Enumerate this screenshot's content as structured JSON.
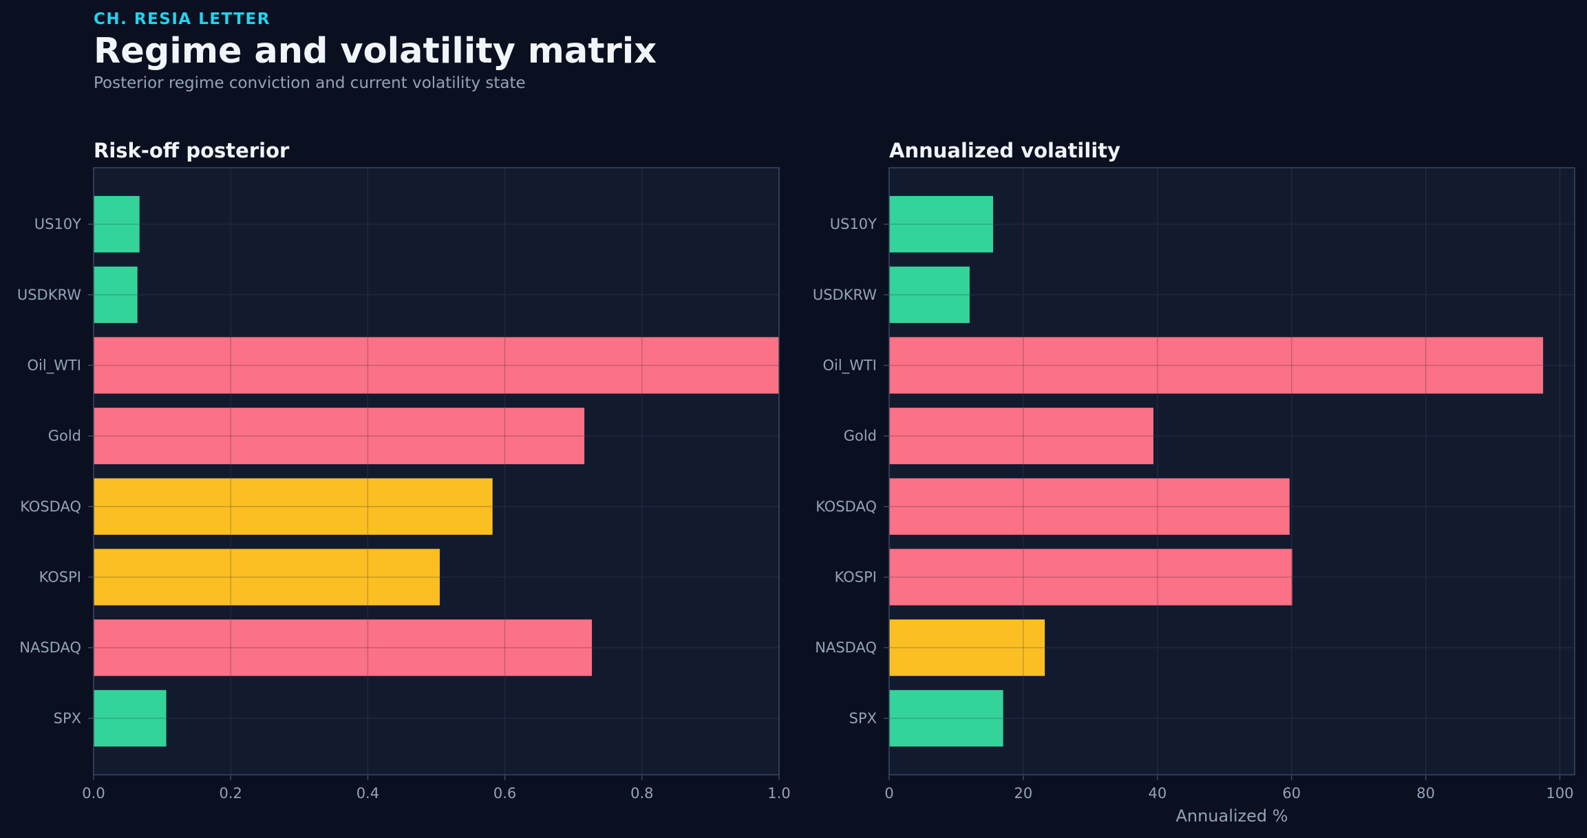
{
  "header": {
    "eyebrow": "CH. RESIA LETTER",
    "title": "Regime and volatility matrix",
    "subtitle": "Posterior regime conviction and current volatility state"
  },
  "colors": {
    "background": "#0a1020",
    "panel": "#121a2e",
    "green": "#34d399",
    "red": "#fb7185",
    "amber": "#fbbf24",
    "grid": "#26304a",
    "frame": "#3b4766"
  },
  "chart_data": [
    {
      "type": "bar",
      "orientation": "horizontal",
      "title": "Risk-off posterior",
      "xlabel": "",
      "ylabel": "",
      "categories": [
        "US10Y",
        "USDKRW",
        "Oil_WTI",
        "Gold",
        "KOSDAQ",
        "KOSPI",
        "NASDAQ",
        "SPX"
      ],
      "values": [
        0.067,
        0.064,
        1.0,
        0.716,
        0.582,
        0.505,
        0.727,
        0.106
      ],
      "bar_colors": [
        "green",
        "green",
        "red",
        "red",
        "amber",
        "amber",
        "red",
        "green"
      ],
      "xlim": [
        0,
        1.0
      ],
      "xticks": [
        0.0,
        0.2,
        0.4,
        0.6,
        0.8,
        1.0
      ],
      "xtick_labels": [
        "0.0",
        "0.2",
        "0.4",
        "0.6",
        "0.8",
        "1.0"
      ],
      "grid": true
    },
    {
      "type": "bar",
      "orientation": "horizontal",
      "title": "Annualized volatility",
      "xlabel": "Annualized %",
      "ylabel": "",
      "categories": [
        "US10Y",
        "USDKRW",
        "Oil_WTI",
        "Gold",
        "KOSDAQ",
        "KOSPI",
        "NASDAQ",
        "SPX"
      ],
      "values": [
        15.5,
        12.0,
        97.5,
        39.4,
        59.7,
        60.1,
        23.2,
        17.0
      ],
      "bar_colors": [
        "green",
        "green",
        "red",
        "red",
        "red",
        "red",
        "amber",
        "green"
      ],
      "xlim": [
        0,
        102.2
      ],
      "xticks": [
        0,
        20,
        40,
        60,
        80,
        100
      ],
      "xtick_labels": [
        "0",
        "20",
        "40",
        "60",
        "80",
        "100"
      ],
      "grid": true
    }
  ]
}
